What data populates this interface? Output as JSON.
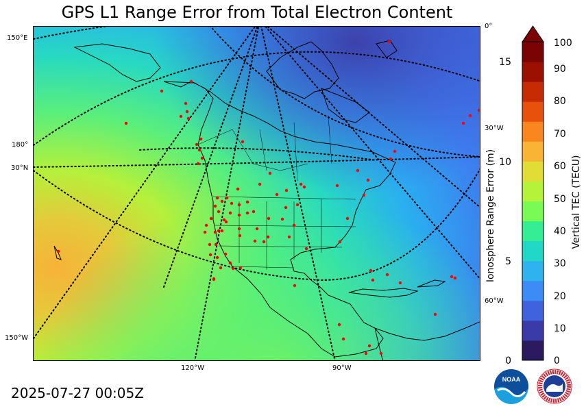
{
  "title": "GPS L1 Range Error from Total Electron Content",
  "timestamp": "2025-07-27 00:05Z",
  "map": {
    "projection": "polar stereographic (North America)",
    "graticule_labels": [
      {
        "text": "150°E"
      },
      {
        "text": "0°"
      },
      {
        "text": "180°"
      },
      {
        "text": "30°N"
      },
      {
        "text": "30°W"
      },
      {
        "text": "60°W"
      },
      {
        "text": "150°W"
      },
      {
        "text": "120°W"
      },
      {
        "text": "90°W"
      }
    ],
    "station_color": "#ff0000",
    "gps_stations": "red dots marking ground GNSS stations",
    "field_color_scale": "TEC shading: blue (low) over Canada/Arctic, green over US, yellow/orange over subtropical Pacific near Hawaii"
  },
  "colorbar": {
    "left_axis_label": "Ionosphere Range Error (m)",
    "left_ticks": [
      "0",
      "5",
      "10",
      "15"
    ],
    "right_axis_label": "Vertical TEC (TECU)",
    "right_ticks": [
      "0",
      "10",
      "20",
      "30",
      "40",
      "50",
      "60",
      "70",
      "80",
      "90",
      "100"
    ],
    "extend": "max",
    "colors": [
      "#2c1a5e",
      "#3a3aa8",
      "#3f63dd",
      "#3b8cf5",
      "#2fb3ee",
      "#20d8c5",
      "#34ee93",
      "#7afa55",
      "#b5f33a",
      "#e2dc36",
      "#f9b436",
      "#f9861f",
      "#e8510c",
      "#c72b03",
      "#9c1001",
      "#7a0403"
    ]
  },
  "logos": {
    "noaa_text": "NOAA",
    "nws_text": "NATIONAL WEATHER SERVICE"
  }
}
